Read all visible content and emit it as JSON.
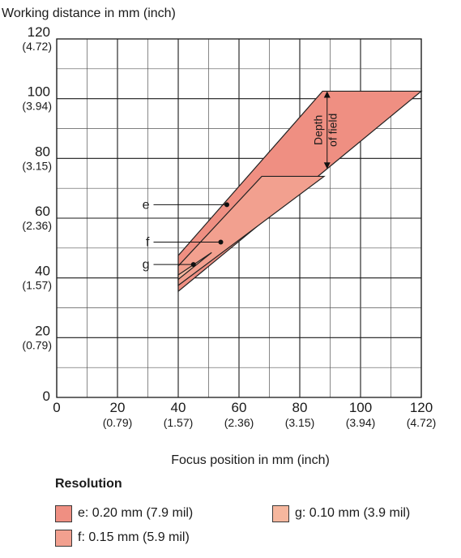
{
  "chart_data": {
    "type": "area",
    "title": "",
    "ylabel": "Working distance in mm (inch)",
    "xlabel": "Focus position in mm (inch)",
    "xlim": [
      0,
      120
    ],
    "ylim": [
      0,
      120
    ],
    "x_ticks": [
      {
        "value": 0,
        "label": "0",
        "sub": ""
      },
      {
        "value": 20,
        "label": "20",
        "sub": "(0.79)"
      },
      {
        "value": 40,
        "label": "40",
        "sub": "(1.57)"
      },
      {
        "value": 60,
        "label": "60",
        "sub": "(2.36)"
      },
      {
        "value": 80,
        "label": "80",
        "sub": "(3.15)"
      },
      {
        "value": 100,
        "label": "100",
        "sub": "(3.94)"
      },
      {
        "value": 120,
        "label": "120",
        "sub": "(4.72)"
      }
    ],
    "y_ticks": [
      {
        "value": 0,
        "label": "0",
        "sub": ""
      },
      {
        "value": 20,
        "label": "20",
        "sub": "(0.79)"
      },
      {
        "value": 40,
        "label": "40",
        "sub": "(1.57)"
      },
      {
        "value": 60,
        "label": "60",
        "sub": "(2.36)"
      },
      {
        "value": 80,
        "label": "80",
        "sub": "(3.15)"
      },
      {
        "value": 100,
        "label": "100",
        "sub": "(3.94)"
      },
      {
        "value": 120,
        "label": "120",
        "sub": "(4.72)"
      }
    ],
    "grid": true,
    "grid_step": 10,
    "series": [
      {
        "name": "e",
        "key": "e",
        "color": "#ef8f82",
        "polygon": [
          [
            40,
            47.5
          ],
          [
            87.5,
            102.5
          ],
          [
            120,
            102.5
          ],
          [
            40,
            35.5
          ]
        ],
        "marker": [
          56,
          64.5
        ]
      },
      {
        "name": "f",
        "key": "f",
        "color": "#f2a08f",
        "polygon": [
          [
            40,
            44
          ],
          [
            67.5,
            74
          ],
          [
            88,
            74
          ],
          [
            40,
            37.5
          ]
        ],
        "marker": [
          54,
          52
        ]
      },
      {
        "name": "g",
        "key": "g",
        "color": "#f6b79e",
        "polygon": [
          [
            40,
            41
          ],
          [
            51,
            48.5
          ],
          [
            40,
            39.5
          ]
        ],
        "marker": [
          45,
          44.5
        ]
      }
    ],
    "annotations": {
      "depth_of_field": [
        "Depth",
        "of field"
      ],
      "dof_x": 89,
      "dof_y_range": [
        76.5,
        102.5
      ],
      "labels": [
        {
          "text": "e",
          "x": 30,
          "y": 64.5,
          "to_x": 56
        },
        {
          "text": "f",
          "x": 30,
          "y": 52,
          "to_x": 54
        },
        {
          "text": "g",
          "x": 30,
          "y": 44.5,
          "to_x": 45
        }
      ]
    }
  },
  "legend": {
    "title": "Resolution",
    "items": [
      {
        "label": "e: 0.20 mm (7.9 mil)",
        "color": "#ef8f82"
      },
      {
        "label": "g: 0.10 mm (3.9 mil)",
        "color": "#f6b79e"
      },
      {
        "label": "f: 0.15 mm (5.9 mil)",
        "color": "#f2a08f"
      }
    ]
  }
}
